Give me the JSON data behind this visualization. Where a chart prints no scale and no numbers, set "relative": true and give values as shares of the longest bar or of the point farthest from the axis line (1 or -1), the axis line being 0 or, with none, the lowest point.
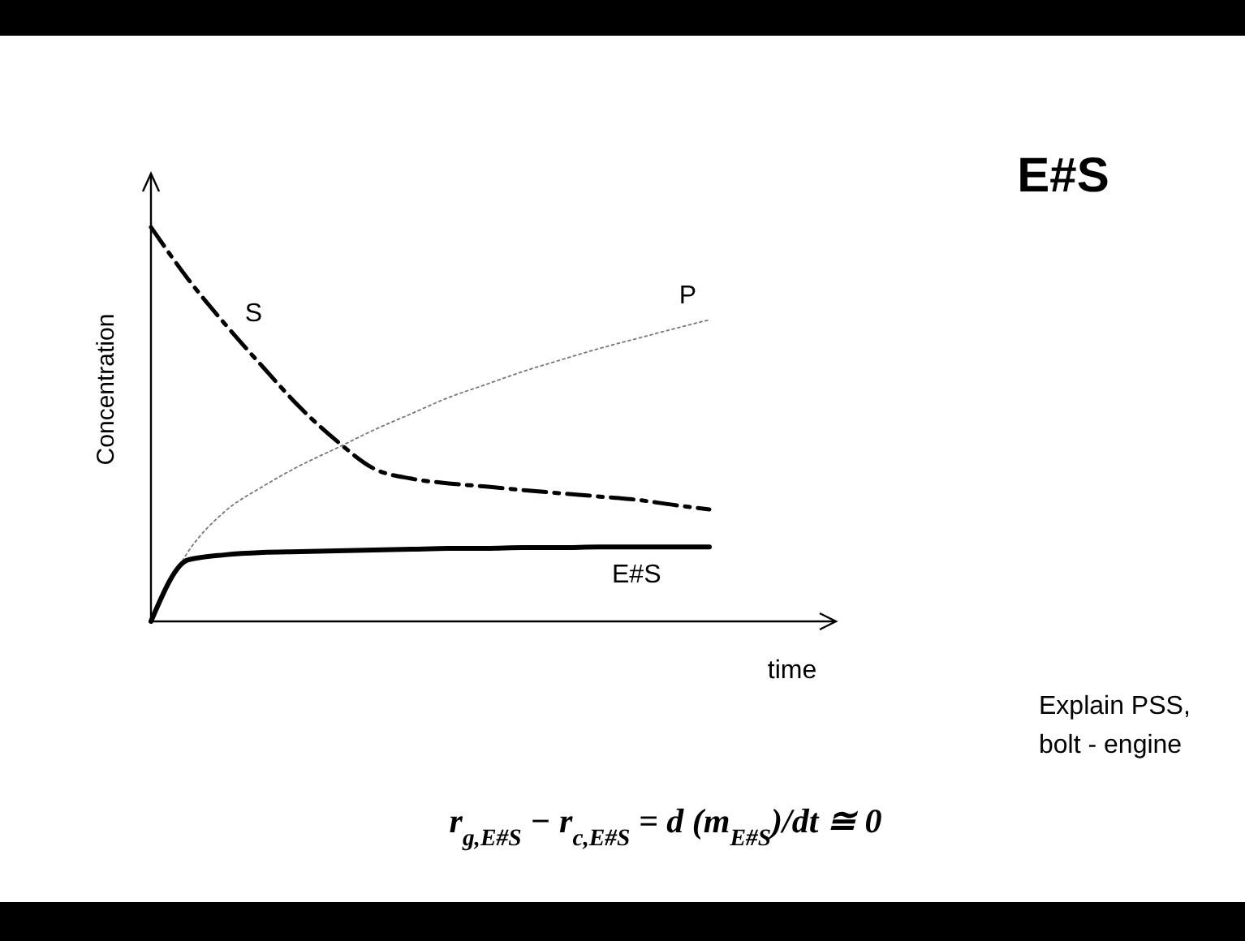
{
  "chart_data": {
    "type": "line",
    "title": "E#S",
    "xlabel": "time",
    "ylabel": "Concentration",
    "relative": true,
    "categories": [
      null,
      null,
      null,
      null,
      null,
      null,
      null,
      null,
      null,
      null,
      null,
      null,
      null,
      null,
      null,
      null
    ],
    "series": [
      {
        "name": "S",
        "color": "#000000",
        "line_style": "dashed",
        "values": [
          1,
          0.868,
          0.753,
          0.646,
          0.543,
          0.457,
          0.387,
          0.362,
          0.35,
          0.342,
          0.333,
          0.325,
          0.317,
          0.309,
          0.296,
          0.284
        ]
      },
      {
        "name": "P",
        "color": "#777777",
        "line_style": "dotted",
        "values": [
          0,
          0.177,
          0.28,
          0.342,
          0.395,
          0.44,
          0.486,
          0.527,
          0.568,
          0.601,
          0.634,
          0.663,
          0.691,
          0.716,
          0.741,
          0.765
        ]
      },
      {
        "name": "E#S",
        "color": "#000000",
        "line_style": "solid",
        "values": [
          0,
          0.156,
          0.169,
          0.175,
          0.177,
          0.179,
          0.181,
          0.183,
          0.185,
          0.185,
          0.187,
          0.187,
          0.189,
          0.189,
          0.189,
          0.189
        ]
      }
    ],
    "annotations": [
      "Explain PSS,\nbolt - engine",
      "r$_{g,E#S}$ − r$_{c,E#S}$ = d (m$_{E#S}$)/dt  ≅ 0"
    ]
  }
}
